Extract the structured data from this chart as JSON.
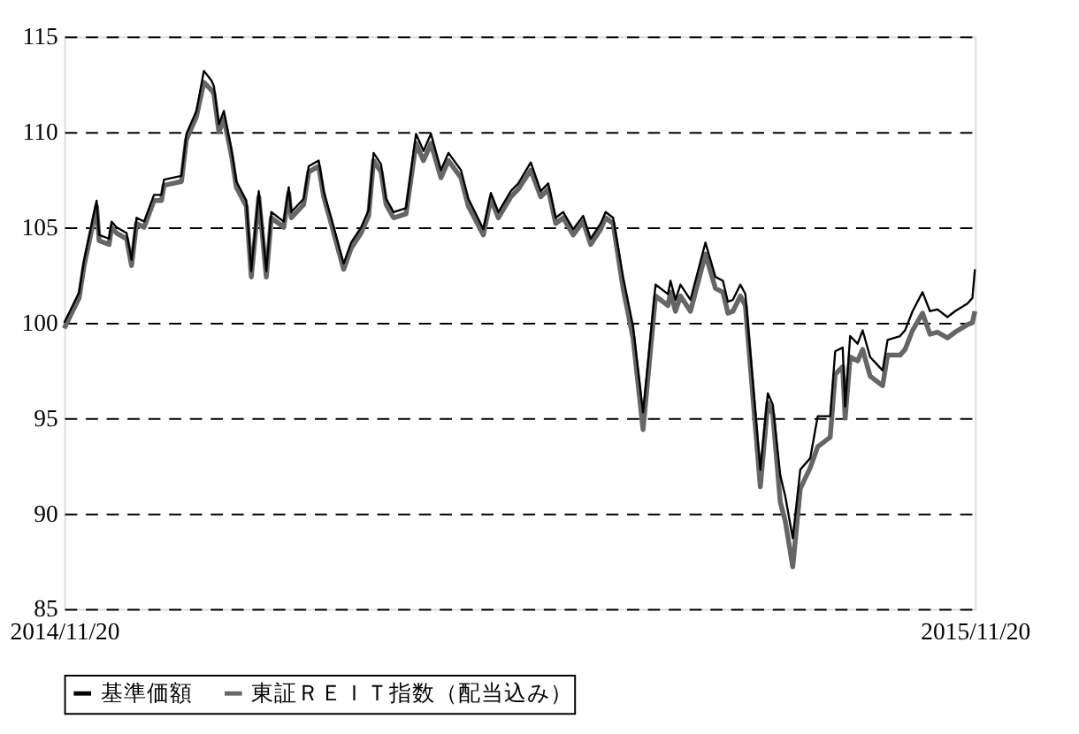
{
  "chart_data": {
    "type": "line",
    "x": [
      "2014-11-20",
      "2014-11-26",
      "2014-11-28",
      "2014-12-03",
      "2014-12-04",
      "2014-12-08",
      "2014-12-09",
      "2014-12-11",
      "2014-12-15",
      "2014-12-17",
      "2014-12-19",
      "2014-12-22",
      "2014-12-26",
      "2014-12-29",
      "2014-12-30",
      "2015-01-06",
      "2015-01-08",
      "2015-01-12",
      "2015-01-15",
      "2015-01-18",
      "2015-01-19",
      "2015-01-21",
      "2015-01-23",
      "2015-01-26",
      "2015-01-28",
      "2015-02-01",
      "2015-02-03",
      "2015-02-06",
      "2015-02-09",
      "2015-02-11",
      "2015-02-16",
      "2015-02-18",
      "2015-02-19",
      "2015-02-24",
      "2015-02-26",
      "2015-03-02",
      "2015-03-04",
      "2015-03-07",
      "2015-03-12",
      "2015-03-15",
      "2015-03-19",
      "2015-03-22",
      "2015-03-24",
      "2015-03-27",
      "2015-03-29",
      "2015-04-01",
      "2015-04-06",
      "2015-04-10",
      "2015-04-13",
      "2015-04-16",
      "2015-04-20",
      "2015-04-23",
      "2015-04-28",
      "2015-05-01",
      "2015-05-07",
      "2015-05-10",
      "2015-05-13",
      "2015-05-18",
      "2015-05-21",
      "2015-05-26",
      "2015-05-30",
      "2015-06-02",
      "2015-06-05",
      "2015-06-08",
      "2015-06-12",
      "2015-06-16",
      "2015-06-19",
      "2015-06-23",
      "2015-06-25",
      "2015-06-28",
      "2015-07-02",
      "2015-07-06",
      "2015-07-10",
      "2015-07-15",
      "2015-07-20",
      "2015-07-21",
      "2015-07-23",
      "2015-07-25",
      "2015-07-29",
      "2015-08-04",
      "2015-08-08",
      "2015-08-11",
      "2015-08-13",
      "2015-08-15",
      "2015-08-18",
      "2015-08-20",
      "2015-08-26",
      "2015-08-29",
      "2015-08-31",
      "2015-09-03",
      "2015-09-05",
      "2015-09-08",
      "2015-09-11",
      "2015-09-15",
      "2015-09-18",
      "2015-09-23",
      "2015-09-25",
      "2015-09-28",
      "2015-09-29",
      "2015-10-01",
      "2015-10-04",
      "2015-10-06",
      "2015-10-09",
      "2015-10-14",
      "2015-10-16",
      "2015-10-21",
      "2015-10-23",
      "2015-10-26",
      "2015-10-30",
      "2015-11-02",
      "2015-11-05",
      "2015-11-09",
      "2015-11-12",
      "2015-11-17",
      "2015-11-19",
      "2015-11-20"
    ],
    "series": [
      {
        "name": "基準価額",
        "color": "#000000",
        "values": [
          100.0,
          101.6,
          103.3,
          106.4,
          104.6,
          104.4,
          105.3,
          105.0,
          104.7,
          103.3,
          105.5,
          105.3,
          106.7,
          106.7,
          107.5,
          107.7,
          109.9,
          111.1,
          113.2,
          112.7,
          112.4,
          110.4,
          111.1,
          109.1,
          107.4,
          106.4,
          102.7,
          106.9,
          102.7,
          105.8,
          105.3,
          107.1,
          105.8,
          106.5,
          108.2,
          108.5,
          106.9,
          105.5,
          103.1,
          104.2,
          105.0,
          105.9,
          108.9,
          108.3,
          106.5,
          105.8,
          106.0,
          109.9,
          109.0,
          109.9,
          108.0,
          108.9,
          108.0,
          106.5,
          104.9,
          106.8,
          105.8,
          106.9,
          107.3,
          108.4,
          106.9,
          107.3,
          105.5,
          105.8,
          104.9,
          105.6,
          104.4,
          105.2,
          105.8,
          105.5,
          102.4,
          99.8,
          95.3,
          102.0,
          101.5,
          102.2,
          101.2,
          102.0,
          101.2,
          104.2,
          102.4,
          102.2,
          101.1,
          101.2,
          102.0,
          101.5,
          92.3,
          96.3,
          95.7,
          92.0,
          90.9,
          88.7,
          92.3,
          92.9,
          95.1,
          95.1,
          98.5,
          98.7,
          95.6,
          99.3,
          98.9,
          99.6,
          98.2,
          97.5,
          99.1,
          99.3,
          99.6,
          100.6,
          101.6,
          100.6,
          100.7,
          100.3,
          100.6,
          101.0,
          101.3,
          102.8
        ]
      },
      {
        "name": "東証ＲＥＩＴ指数（配当込み）",
        "color": "#666666",
        "values": [
          99.7,
          101.3,
          103.0,
          106.1,
          104.3,
          104.1,
          105.0,
          104.7,
          104.4,
          103.0,
          105.2,
          105.0,
          106.4,
          106.4,
          107.2,
          107.4,
          109.6,
          110.8,
          112.6,
          112.2,
          112.0,
          110.0,
          110.7,
          108.8,
          107.1,
          106.1,
          102.4,
          106.6,
          102.4,
          105.5,
          105.0,
          106.8,
          105.5,
          106.2,
          107.9,
          108.2,
          106.6,
          105.2,
          102.8,
          103.9,
          104.7,
          105.6,
          108.5,
          107.9,
          106.2,
          105.5,
          105.7,
          109.4,
          108.5,
          109.4,
          107.6,
          108.5,
          107.6,
          106.1,
          104.6,
          106.5,
          105.5,
          106.6,
          107.0,
          108.0,
          106.6,
          107.0,
          105.2,
          105.5,
          104.6,
          105.3,
          104.1,
          104.9,
          105.5,
          105.2,
          101.8,
          99.2,
          94.4,
          101.4,
          100.9,
          101.6,
          100.6,
          101.4,
          100.6,
          103.6,
          101.8,
          101.6,
          100.5,
          100.6,
          101.4,
          100.9,
          91.4,
          95.8,
          95.2,
          90.6,
          89.6,
          87.2,
          91.3,
          92.4,
          93.5,
          94.0,
          97.3,
          97.7,
          95.0,
          98.2,
          98.0,
          98.6,
          97.2,
          96.7,
          98.3,
          98.3,
          98.6,
          99.6,
          100.5,
          99.4,
          99.5,
          99.2,
          99.5,
          99.9,
          100.0,
          100.6
        ]
      }
    ],
    "xlim": [
      "2014-11-20",
      "2015-11-20"
    ],
    "xticks": [
      {
        "value": "2014-11-20",
        "label": "2014/11/20"
      },
      {
        "value": "2015-11-20",
        "label": "2015/11/20"
      }
    ],
    "ylim": [
      85,
      115
    ],
    "yticks": [
      85,
      90,
      95,
      100,
      105,
      110,
      115
    ],
    "grid": "y",
    "legend": "bottom",
    "marker": "none",
    "line_style": "solid"
  }
}
